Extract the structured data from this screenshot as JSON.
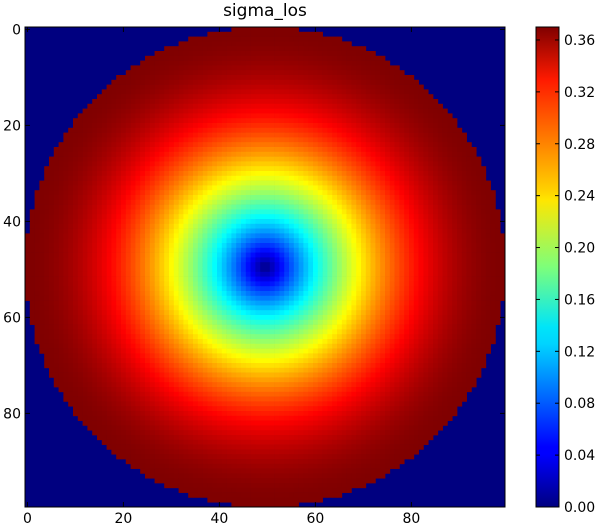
{
  "chart_data": {
    "type": "heatmap",
    "title": "sigma_los",
    "xlabel": "",
    "ylabel": "",
    "grid": false,
    "colormap": "jet",
    "image_shape": [
      100,
      100
    ],
    "xlim": [
      0,
      99
    ],
    "ylim": [
      99,
      0
    ],
    "x_ticks": [
      "0",
      "20",
      "40",
      "60",
      "80"
    ],
    "y_ticks": [
      "0",
      "20",
      "40",
      "60",
      "80"
    ],
    "center": [
      50,
      50
    ],
    "radius": 50,
    "center_value": 0.0,
    "rim_value": 0.37,
    "outside_value": 0.0,
    "colorbar": {
      "range": [
        0.0,
        0.37
      ],
      "ticks": [
        "0.00",
        "0.04",
        "0.08",
        "0.12",
        "0.16",
        "0.20",
        "0.24",
        "0.28",
        "0.32",
        "0.36"
      ]
    }
  }
}
